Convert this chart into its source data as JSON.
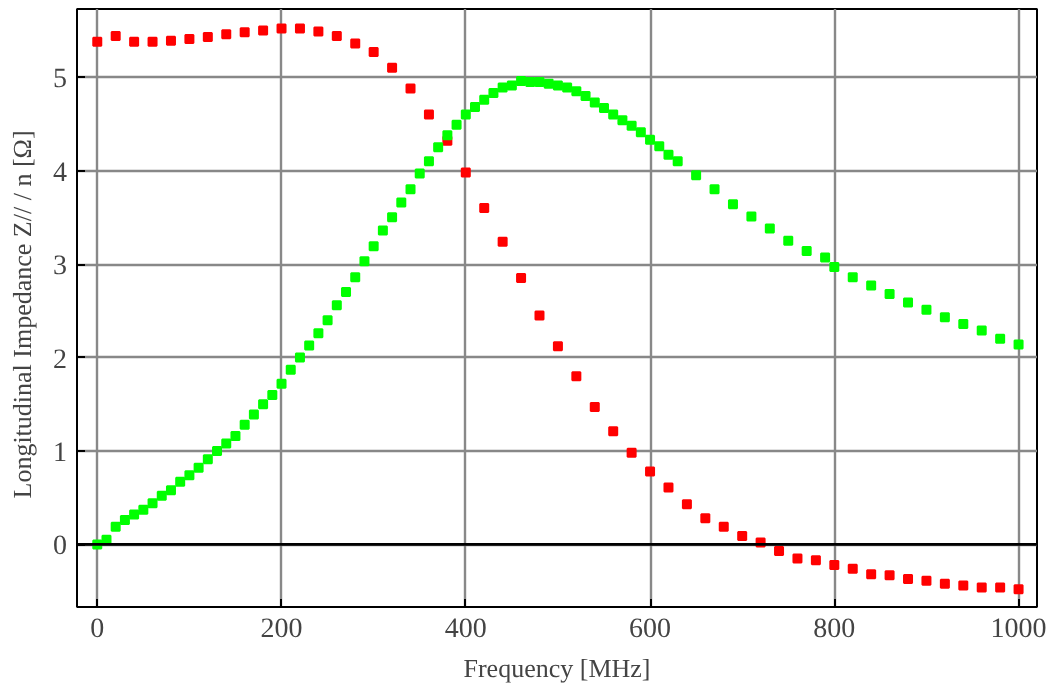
{
  "chart_data": {
    "type": "scatter",
    "xlabel": "Frequency [MHz]",
    "ylabel": "Longitudinal Impedance  Z// / n  [Ω]",
    "xlim": [
      -22,
      1020
    ],
    "ylim": [
      -0.67,
      5.73
    ],
    "xticks": [
      0,
      200,
      400,
      600,
      800,
      1000
    ],
    "yticks": [
      0,
      1,
      2,
      3,
      4,
      5
    ],
    "grid": true,
    "marker": "square",
    "ref_lines": [
      {
        "axis": "y",
        "value": 0,
        "color": "#000000"
      }
    ],
    "series": [
      {
        "color": "#ff0000",
        "x": [
          0,
          20,
          40,
          60,
          80,
          100,
          120,
          140,
          160,
          180,
          200,
          220,
          240,
          260,
          280,
          300,
          320,
          340,
          360,
          380,
          400,
          420,
          440,
          460,
          480,
          500,
          520,
          540,
          560,
          580,
          600,
          620,
          640,
          660,
          680,
          700,
          720,
          740,
          760,
          780,
          800,
          820,
          840,
          860,
          880,
          900,
          920,
          940,
          960,
          980,
          1000
        ],
        "values": [
          5.38,
          5.44,
          5.38,
          5.38,
          5.39,
          5.41,
          5.43,
          5.46,
          5.48,
          5.5,
          5.52,
          5.52,
          5.49,
          5.44,
          5.36,
          5.27,
          5.1,
          4.88,
          4.6,
          4.32,
          3.98,
          3.6,
          3.24,
          2.85,
          2.45,
          2.12,
          1.8,
          1.47,
          1.21,
          0.98,
          0.78,
          0.61,
          0.43,
          0.28,
          0.19,
          0.09,
          0.02,
          -0.07,
          -0.15,
          -0.17,
          -0.22,
          -0.26,
          -0.32,
          -0.33,
          -0.37,
          -0.39,
          -0.42,
          -0.44,
          -0.46,
          -0.46,
          -0.48
        ]
      },
      {
        "color": "#00ff00",
        "x": [
          0,
          10,
          20,
          30,
          40,
          50,
          60,
          70,
          80,
          90,
          100,
          110,
          120,
          130,
          140,
          150,
          160,
          170,
          180,
          190,
          200,
          210,
          220,
          230,
          240,
          250,
          260,
          270,
          280,
          290,
          300,
          310,
          320,
          330,
          340,
          350,
          360,
          370,
          380,
          390,
          400,
          410,
          420,
          430,
          440,
          450,
          460,
          470,
          480,
          490,
          500,
          510,
          520,
          530,
          540,
          550,
          560,
          570,
          580,
          590,
          600,
          610,
          620,
          630,
          650,
          670,
          690,
          710,
          730,
          750,
          770,
          790,
          800,
          820,
          840,
          860,
          880,
          900,
          920,
          940,
          960,
          980,
          1000
        ],
        "values": [
          0,
          0.05,
          0.19,
          0.26,
          0.32,
          0.37,
          0.44,
          0.52,
          0.58,
          0.67,
          0.74,
          0.82,
          0.91,
          1.0,
          1.08,
          1.16,
          1.28,
          1.39,
          1.5,
          1.6,
          1.72,
          1.87,
          2.0,
          2.13,
          2.26,
          2.4,
          2.56,
          2.7,
          2.86,
          3.03,
          3.19,
          3.36,
          3.5,
          3.66,
          3.8,
          3.97,
          4.1,
          4.25,
          4.38,
          4.49,
          4.6,
          4.68,
          4.76,
          4.83,
          4.89,
          4.91,
          4.96,
          4.95,
          4.95,
          4.93,
          4.91,
          4.89,
          4.85,
          4.8,
          4.73,
          4.67,
          4.6,
          4.54,
          4.48,
          4.41,
          4.33,
          4.26,
          4.17,
          4.1,
          3.95,
          3.8,
          3.64,
          3.51,
          3.38,
          3.25,
          3.14,
          3.07,
          2.97,
          2.86,
          2.77,
          2.68,
          2.59,
          2.51,
          2.43,
          2.36,
          2.29,
          2.2,
          2.14
        ]
      }
    ]
  }
}
